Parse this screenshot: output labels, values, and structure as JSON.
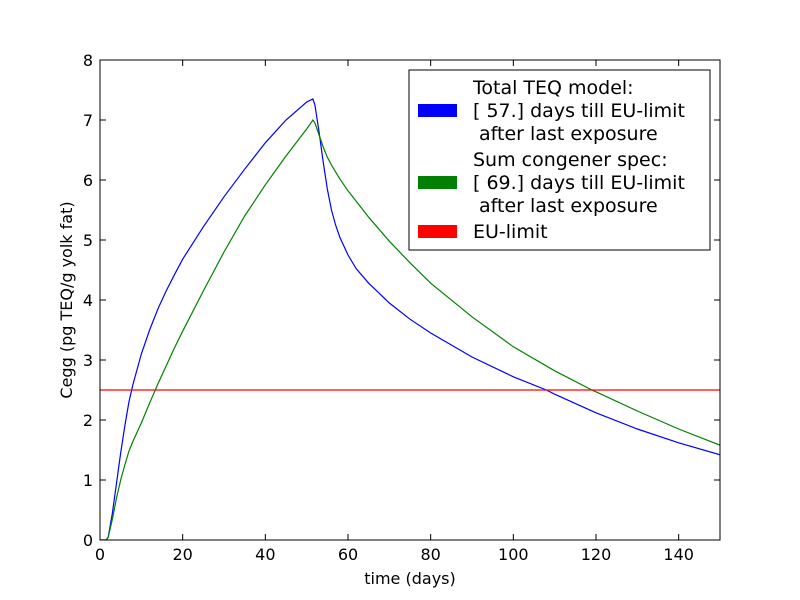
{
  "chart_data": {
    "type": "line",
    "title": "",
    "xlabel": "time (days)",
    "ylabel": "Cegg (pg TEQ/g yolk fat)",
    "xlim": [
      0,
      150
    ],
    "ylim": [
      0,
      8
    ],
    "xticks": [
      0,
      20,
      40,
      60,
      80,
      100,
      120,
      140
    ],
    "yticks": [
      0,
      1,
      2,
      3,
      4,
      5,
      6,
      7,
      8
    ],
    "grid": false,
    "legend_position": "top-right",
    "series": [
      {
        "color": "#0000ff",
        "legend_lines": [
          "Total TEQ model:",
          "[ 57.] days till EU-limit",
          " after last exposure"
        ],
        "x": [
          0,
          1.5,
          2,
          3,
          4,
          5,
          6,
          7,
          8,
          9,
          10,
          12,
          14,
          16,
          18,
          20,
          25,
          30,
          35,
          40,
          45,
          50,
          51.5,
          52,
          53,
          54,
          55,
          56,
          57,
          58,
          60,
          62,
          65,
          70,
          75,
          80,
          90,
          100,
          108,
          110,
          120,
          130,
          140,
          150
        ],
        "y": [
          0,
          0,
          0.05,
          0.45,
          0.95,
          1.45,
          1.9,
          2.3,
          2.6,
          2.85,
          3.1,
          3.5,
          3.85,
          4.15,
          4.42,
          4.68,
          5.22,
          5.72,
          6.18,
          6.62,
          7.0,
          7.3,
          7.35,
          7.25,
          6.8,
          6.3,
          5.85,
          5.5,
          5.25,
          5.05,
          4.75,
          4.52,
          4.28,
          3.95,
          3.68,
          3.45,
          3.05,
          2.72,
          2.5,
          2.43,
          2.12,
          1.85,
          1.62,
          1.42
        ]
      },
      {
        "color": "#008000",
        "legend_lines": [
          "Sum congener spec:",
          "[ 69.] days till EU-limit",
          " after last exposure"
        ],
        "x": [
          0,
          1.5,
          2,
          3,
          4,
          5,
          6,
          7,
          8,
          9,
          10,
          12,
          14,
          16,
          18,
          20,
          25,
          30,
          35,
          40,
          45,
          50,
          51.5,
          52,
          53,
          54,
          55,
          56,
          58,
          60,
          65,
          70,
          75,
          80,
          90,
          100,
          110,
          119,
          120,
          130,
          140,
          150
        ],
        "y": [
          0,
          0,
          0.05,
          0.35,
          0.7,
          1.0,
          1.25,
          1.48,
          1.65,
          1.8,
          1.95,
          2.28,
          2.6,
          2.9,
          3.2,
          3.48,
          4.15,
          4.8,
          5.4,
          5.92,
          6.4,
          6.85,
          7.0,
          6.95,
          6.75,
          6.55,
          6.38,
          6.25,
          6.02,
          5.82,
          5.38,
          4.98,
          4.62,
          4.28,
          3.72,
          3.22,
          2.82,
          2.5,
          2.47,
          2.15,
          1.85,
          1.58
        ]
      },
      {
        "color": "#ff0000",
        "legend_lines": [
          "EU-limit"
        ],
        "x": [
          0,
          150
        ],
        "y": [
          2.5,
          2.5
        ]
      }
    ]
  }
}
